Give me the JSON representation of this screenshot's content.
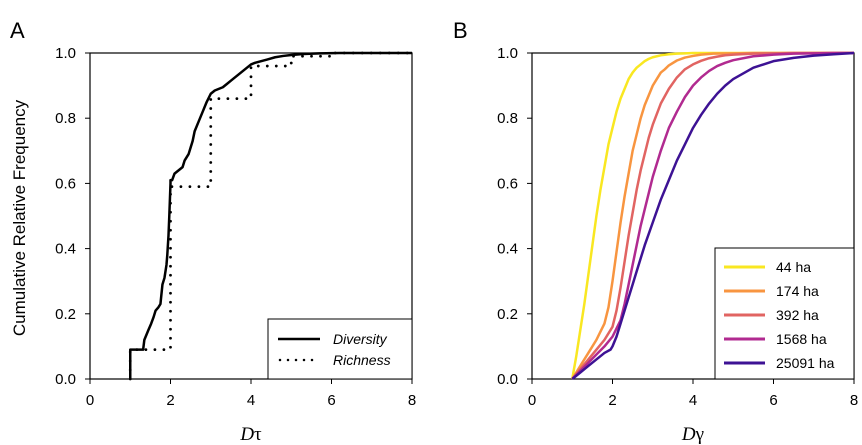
{
  "figure": {
    "ylabel": "Cumulative Relative Frequency"
  },
  "chart_data": [
    {
      "type": "line",
      "panel": "A",
      "xlabel_main": "D",
      "xlabel_sub": "τ",
      "xlim": [
        0,
        8
      ],
      "ylim": [
        0,
        1
      ],
      "xticks": [
        "0",
        "2",
        "4",
        "6",
        "8"
      ],
      "yticks": [
        "0.0",
        "0.2",
        "0.4",
        "0.6",
        "0.8",
        "1.0"
      ],
      "legend_position": "bottom-right",
      "series": [
        {
          "name": "Diversity",
          "style": "solid",
          "color": "#000000",
          "x": [
            1.0,
            1.0,
            1.32,
            1.35,
            1.45,
            1.52,
            1.58,
            1.63,
            1.7,
            1.75,
            1.8,
            1.85,
            1.9,
            1.92,
            1.95,
            1.97,
            2.0,
            2.0,
            2.04,
            2.1,
            2.2,
            2.3,
            2.35,
            2.45,
            2.5,
            2.55,
            2.6,
            2.7,
            2.8,
            2.9,
            3.0,
            3.1,
            3.2,
            3.3,
            3.4,
            3.5,
            3.6,
            3.7,
            3.8,
            3.9,
            4.0,
            4.1,
            4.25,
            4.4,
            4.6,
            4.8,
            5.0,
            5.3,
            5.7,
            6.2,
            8.0
          ],
          "y": [
            0.0,
            0.09,
            0.09,
            0.12,
            0.15,
            0.17,
            0.19,
            0.21,
            0.22,
            0.23,
            0.29,
            0.31,
            0.35,
            0.38,
            0.44,
            0.5,
            0.6,
            0.61,
            0.61,
            0.63,
            0.64,
            0.65,
            0.67,
            0.69,
            0.71,
            0.73,
            0.76,
            0.79,
            0.82,
            0.85,
            0.875,
            0.885,
            0.89,
            0.895,
            0.905,
            0.915,
            0.925,
            0.935,
            0.945,
            0.955,
            0.965,
            0.97,
            0.975,
            0.98,
            0.987,
            0.991,
            0.994,
            0.997,
            0.999,
            1.0,
            1.0
          ]
        },
        {
          "name": "Richness",
          "style": "dotted",
          "color": "#000000",
          "x": [
            1.0,
            1.0,
            1.5,
            2.0,
            2.0,
            2.0,
            2.5,
            3.0,
            3.0,
            3.0,
            3.5,
            4.0,
            4.0,
            4.0,
            4.5,
            5.0,
            5.0,
            6.0,
            6.0,
            8.0
          ],
          "y": [
            0.0,
            0.09,
            0.09,
            0.09,
            0.35,
            0.59,
            0.59,
            0.59,
            0.75,
            0.86,
            0.86,
            0.86,
            0.92,
            0.96,
            0.96,
            0.96,
            0.99,
            0.99,
            1.0,
            1.0
          ]
        }
      ]
    },
    {
      "type": "line",
      "panel": "B",
      "xlabel_main": "D",
      "xlabel_sub": "γ",
      "xlim": [
        0,
        8
      ],
      "ylim": [
        0,
        1
      ],
      "xticks": [
        "0",
        "2",
        "4",
        "6",
        "8"
      ],
      "yticks": [
        "0.0",
        "0.2",
        "0.4",
        "0.6",
        "0.8",
        "1.0"
      ],
      "legend_position": "bottom-right",
      "series": [
        {
          "name": "44 ha",
          "color": "#f9e721",
          "x": [
            1.0,
            1.1,
            1.2,
            1.3,
            1.4,
            1.5,
            1.6,
            1.7,
            1.8,
            1.9,
            2.0,
            2.1,
            2.2,
            2.3,
            2.4,
            2.5,
            2.6,
            2.7,
            2.8,
            2.9,
            3.0,
            3.2,
            3.4,
            3.6,
            3.8,
            4.0,
            4.5,
            5.0,
            6.0,
            7.0,
            8.0
          ],
          "y": [
            0.0,
            0.07,
            0.15,
            0.23,
            0.32,
            0.41,
            0.5,
            0.58,
            0.65,
            0.72,
            0.77,
            0.82,
            0.86,
            0.89,
            0.92,
            0.94,
            0.955,
            0.965,
            0.975,
            0.982,
            0.987,
            0.993,
            0.996,
            0.998,
            0.999,
            1.0,
            1.0,
            1.0,
            1.0,
            1.0,
            1.0
          ]
        },
        {
          "name": "174 ha",
          "color": "#f89540",
          "x": [
            1.0,
            1.2,
            1.4,
            1.6,
            1.8,
            1.9,
            2.0,
            2.1,
            2.2,
            2.3,
            2.4,
            2.5,
            2.6,
            2.7,
            2.8,
            2.9,
            3.0,
            3.1,
            3.2,
            3.3,
            3.4,
            3.6,
            3.8,
            4.0,
            4.2,
            4.5,
            5.0,
            5.5,
            6.0,
            7.0,
            8.0
          ],
          "y": [
            0.0,
            0.04,
            0.08,
            0.12,
            0.17,
            0.22,
            0.3,
            0.39,
            0.48,
            0.56,
            0.63,
            0.7,
            0.75,
            0.8,
            0.84,
            0.87,
            0.9,
            0.92,
            0.94,
            0.95,
            0.962,
            0.977,
            0.986,
            0.991,
            0.995,
            0.998,
            0.999,
            1.0,
            1.0,
            1.0,
            1.0
          ]
        },
        {
          "name": "392 ha",
          "color": "#e16462",
          "x": [
            1.0,
            1.2,
            1.4,
            1.6,
            1.8,
            2.0,
            2.1,
            2.2,
            2.3,
            2.4,
            2.5,
            2.6,
            2.7,
            2.8,
            2.9,
            3.0,
            3.2,
            3.4,
            3.6,
            3.8,
            4.0,
            4.2,
            4.4,
            4.6,
            4.8,
            5.0,
            5.5,
            6.0,
            6.5,
            7.0,
            8.0
          ],
          "y": [
            0.0,
            0.03,
            0.06,
            0.09,
            0.12,
            0.16,
            0.21,
            0.28,
            0.36,
            0.44,
            0.51,
            0.58,
            0.64,
            0.69,
            0.74,
            0.78,
            0.845,
            0.89,
            0.925,
            0.95,
            0.965,
            0.976,
            0.984,
            0.989,
            0.993,
            0.995,
            0.998,
            0.999,
            1.0,
            1.0,
            1.0
          ]
        },
        {
          "name": "1568 ha",
          "color": "#b12a90",
          "x": [
            1.0,
            1.2,
            1.4,
            1.6,
            1.8,
            2.0,
            2.2,
            2.3,
            2.4,
            2.5,
            2.6,
            2.7,
            2.8,
            2.9,
            3.0,
            3.2,
            3.4,
            3.6,
            3.8,
            4.0,
            4.2,
            4.4,
            4.6,
            4.8,
            5.0,
            5.5,
            6.0,
            6.5,
            7.0,
            7.5,
            8.0
          ],
          "y": [
            0.0,
            0.025,
            0.05,
            0.075,
            0.1,
            0.13,
            0.18,
            0.23,
            0.29,
            0.35,
            0.41,
            0.47,
            0.52,
            0.57,
            0.62,
            0.7,
            0.77,
            0.82,
            0.865,
            0.9,
            0.925,
            0.945,
            0.96,
            0.97,
            0.978,
            0.99,
            0.995,
            0.998,
            0.999,
            1.0,
            1.0
          ]
        },
        {
          "name": "25091 ha",
          "color": "#3d1294",
          "x": [
            1.0,
            1.2,
            1.4,
            1.6,
            1.8,
            1.95,
            2.0,
            2.1,
            2.2,
            2.3,
            2.4,
            2.5,
            2.6,
            2.8,
            3.0,
            3.2,
            3.4,
            3.6,
            3.8,
            4.0,
            4.2,
            4.4,
            4.6,
            4.8,
            5.0,
            5.5,
            6.0,
            6.5,
            7.0,
            7.5,
            8.0
          ],
          "y": [
            0.0,
            0.02,
            0.04,
            0.06,
            0.08,
            0.09,
            0.1,
            0.13,
            0.17,
            0.21,
            0.25,
            0.29,
            0.33,
            0.41,
            0.48,
            0.55,
            0.61,
            0.67,
            0.72,
            0.77,
            0.81,
            0.845,
            0.875,
            0.9,
            0.92,
            0.955,
            0.975,
            0.985,
            0.992,
            0.996,
            1.0
          ]
        }
      ]
    }
  ]
}
